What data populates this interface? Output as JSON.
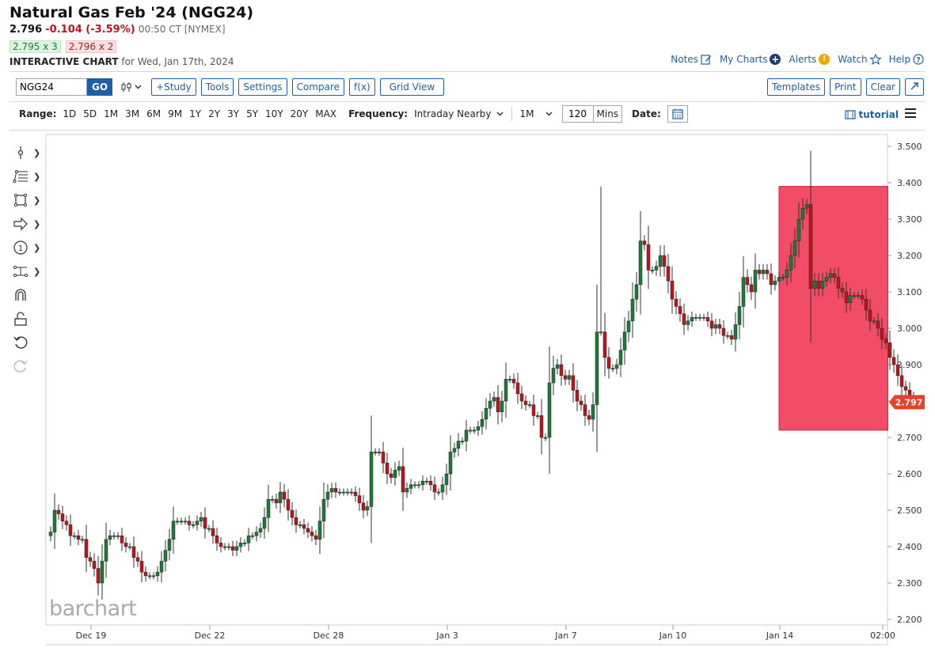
{
  "header": {
    "title": "Natural Gas Feb '24 (NGG24)",
    "last": "2.796",
    "change": "-0.104 (-3.59%)",
    "time": "00:50 CT [NYMEX]",
    "bid": "2.795 x 3",
    "ask": "2.796 x 2",
    "interactive_label": "INTERACTIVE CHART",
    "interactive_for": "for Wed, Jan 17th, 2024"
  },
  "toplinks": {
    "notes": "Notes",
    "mycharts": "My Charts",
    "alerts": "Alerts",
    "watch": "Watch",
    "help": "Help"
  },
  "toolbar": {
    "symbol": "NGG24",
    "go": "GO",
    "study": "+Study",
    "tools": "Tools",
    "settings": "Settings",
    "compare": "Compare",
    "fx": "f(x)",
    "gridview": "Grid View",
    "templates": "Templates",
    "print": "Print",
    "clear": "Clear"
  },
  "controls": {
    "range_label": "Range:",
    "ranges": [
      "1D",
      "5D",
      "1M",
      "3M",
      "6M",
      "9M",
      "1Y",
      "2Y",
      "3Y",
      "5Y",
      "10Y",
      "20Y",
      "MAX"
    ],
    "frequency_label": "Frequency:",
    "frequency": "Intraday Nearby",
    "period": "1M",
    "mins_value": "120",
    "mins_unit": "Mins",
    "date_label": "Date:",
    "tutorial": "tutorial"
  },
  "left_tools": [
    "crosshair-icon",
    "fib-lines-icon",
    "rectangle-icon",
    "arrow-icon",
    "counter-icon",
    "measure-icon",
    "magnet-icon",
    "lock-icon",
    "undo-icon",
    "redo-icon"
  ],
  "colors": {
    "up": "#1c7a3a",
    "down": "#c0141c",
    "accent": "#1f5fa8",
    "highlight": "#f0435e",
    "price_tag": "#e8412b"
  },
  "watermark": "barchart",
  "chart_data": {
    "type": "candlestick",
    "symbol": "NGG24",
    "interval": "120 Mins",
    "y_ticks": [
      "3.500",
      "3.400",
      "3.300",
      "3.200",
      "3.100",
      "3.000",
      "2.900",
      "2.800",
      "2.700",
      "2.600",
      "2.500",
      "2.400",
      "2.300",
      "2.200"
    ],
    "ylim": [
      2.2,
      3.5
    ],
    "x_ticks": [
      "Dec 19",
      "Dec 22",
      "Dec 28",
      "Jan 3",
      "Jan 7",
      "Jan 10",
      "Jan 14",
      "02:00"
    ],
    "x_tick_bar_index": [
      10,
      40,
      70,
      100,
      130,
      157,
      184,
      210
    ],
    "last_price_label": "2.797",
    "last_price": 2.797,
    "closes": [
      2.44,
      2.5,
      2.49,
      2.47,
      2.46,
      2.43,
      2.43,
      2.42,
      2.42,
      2.37,
      2.36,
      2.34,
      2.3,
      2.36,
      2.42,
      2.43,
      2.43,
      2.43,
      2.41,
      2.4,
      2.4,
      2.37,
      2.36,
      2.33,
      2.32,
      2.32,
      2.32,
      2.33,
      2.36,
      2.39,
      2.42,
      2.47,
      2.47,
      2.47,
      2.47,
      2.46,
      2.46,
      2.47,
      2.48,
      2.45,
      2.45,
      2.43,
      2.41,
      2.4,
      2.4,
      2.4,
      2.39,
      2.4,
      2.41,
      2.41,
      2.43,
      2.43,
      2.44,
      2.45,
      2.48,
      2.53,
      2.53,
      2.52,
      2.55,
      2.53,
      2.5,
      2.48,
      2.46,
      2.46,
      2.45,
      2.44,
      2.43,
      2.42,
      2.47,
      2.53,
      2.55,
      2.56,
      2.55,
      2.55,
      2.55,
      2.55,
      2.55,
      2.54,
      2.52,
      2.5,
      2.51,
      2.66,
      2.66,
      2.66,
      2.63,
      2.6,
      2.59,
      2.61,
      2.62,
      2.55,
      2.56,
      2.57,
      2.57,
      2.57,
      2.58,
      2.58,
      2.57,
      2.55,
      2.55,
      2.57,
      2.6,
      2.66,
      2.67,
      2.69,
      2.69,
      2.72,
      2.72,
      2.72,
      2.73,
      2.75,
      2.78,
      2.8,
      2.81,
      2.77,
      2.8,
      2.86,
      2.86,
      2.85,
      2.82,
      2.8,
      2.79,
      2.79,
      2.76,
      2.76,
      2.7,
      2.7,
      2.85,
      2.89,
      2.9,
      2.87,
      2.86,
      2.87,
      2.83,
      2.8,
      2.79,
      2.76,
      2.75,
      2.79,
      2.99,
      2.99,
      2.92,
      2.89,
      2.89,
      2.9,
      2.94,
      2.99,
      3.02,
      3.08,
      3.12,
      3.24,
      3.23,
      3.16,
      3.16,
      3.17,
      3.2,
      3.17,
      3.13,
      3.08,
      3.06,
      3.04,
      3.01,
      3.02,
      3.03,
      3.03,
      3.03,
      3.03,
      3.02,
      3.0,
      3.01,
      3.0,
      2.98,
      2.98,
      2.97,
      3.01,
      3.06,
      3.14,
      3.12,
      3.1,
      3.16,
      3.15,
      3.16,
      3.15,
      3.12,
      3.13,
      3.14,
      3.14,
      3.16,
      3.2,
      3.24,
      3.3,
      3.33,
      3.34,
      3.11,
      3.13,
      3.11,
      3.13,
      3.14,
      3.15,
      3.14,
      3.11,
      3.1,
      3.07,
      3.09,
      3.09,
      3.09,
      3.08,
      3.05,
      3.02,
      3.02,
      3.0,
      2.97,
      2.96,
      2.92,
      2.9,
      2.87,
      2.84,
      2.83,
      2.81,
      2.8,
      2.8,
      2.8
    ],
    "spike_highs": {
      "139": 3.39
    },
    "highlight_box": {
      "x_bar_start": 184,
      "x_bar_end": 211.5,
      "y_top": 3.39,
      "y_bottom": 2.72,
      "color": "#f0435e"
    }
  }
}
